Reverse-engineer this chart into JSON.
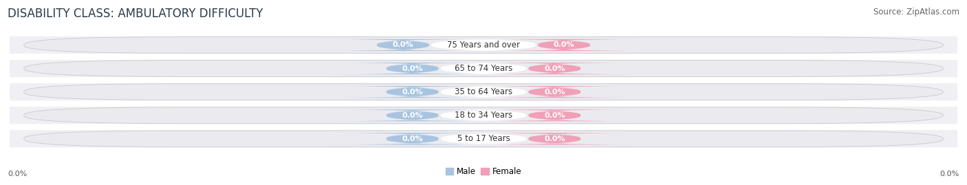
{
  "title": "DISABILITY CLASS: AMBULATORY DIFFICULTY",
  "source": "Source: ZipAtlas.com",
  "categories": [
    "5 to 17 Years",
    "18 to 34 Years",
    "35 to 64 Years",
    "65 to 74 Years",
    "75 Years and over"
  ],
  "male_values": [
    0.0,
    0.0,
    0.0,
    0.0,
    0.0
  ],
  "female_values": [
    0.0,
    0.0,
    0.0,
    0.0,
    0.0
  ],
  "male_color": "#a8c4e0",
  "female_color": "#f0a0b8",
  "bar_bg_color": "#ebebef",
  "bar_border_color": "#ccccd4",
  "bar_stripe_color": "#e0e0e6",
  "axis_label_left": "0.0%",
  "axis_label_right": "0.0%",
  "male_legend": "Male",
  "female_legend": "Female",
  "title_fontsize": 12,
  "source_fontsize": 8.5,
  "label_fontsize": 8,
  "category_fontsize": 8.5,
  "figsize": [
    14.06,
    2.69
  ],
  "dpi": 100
}
